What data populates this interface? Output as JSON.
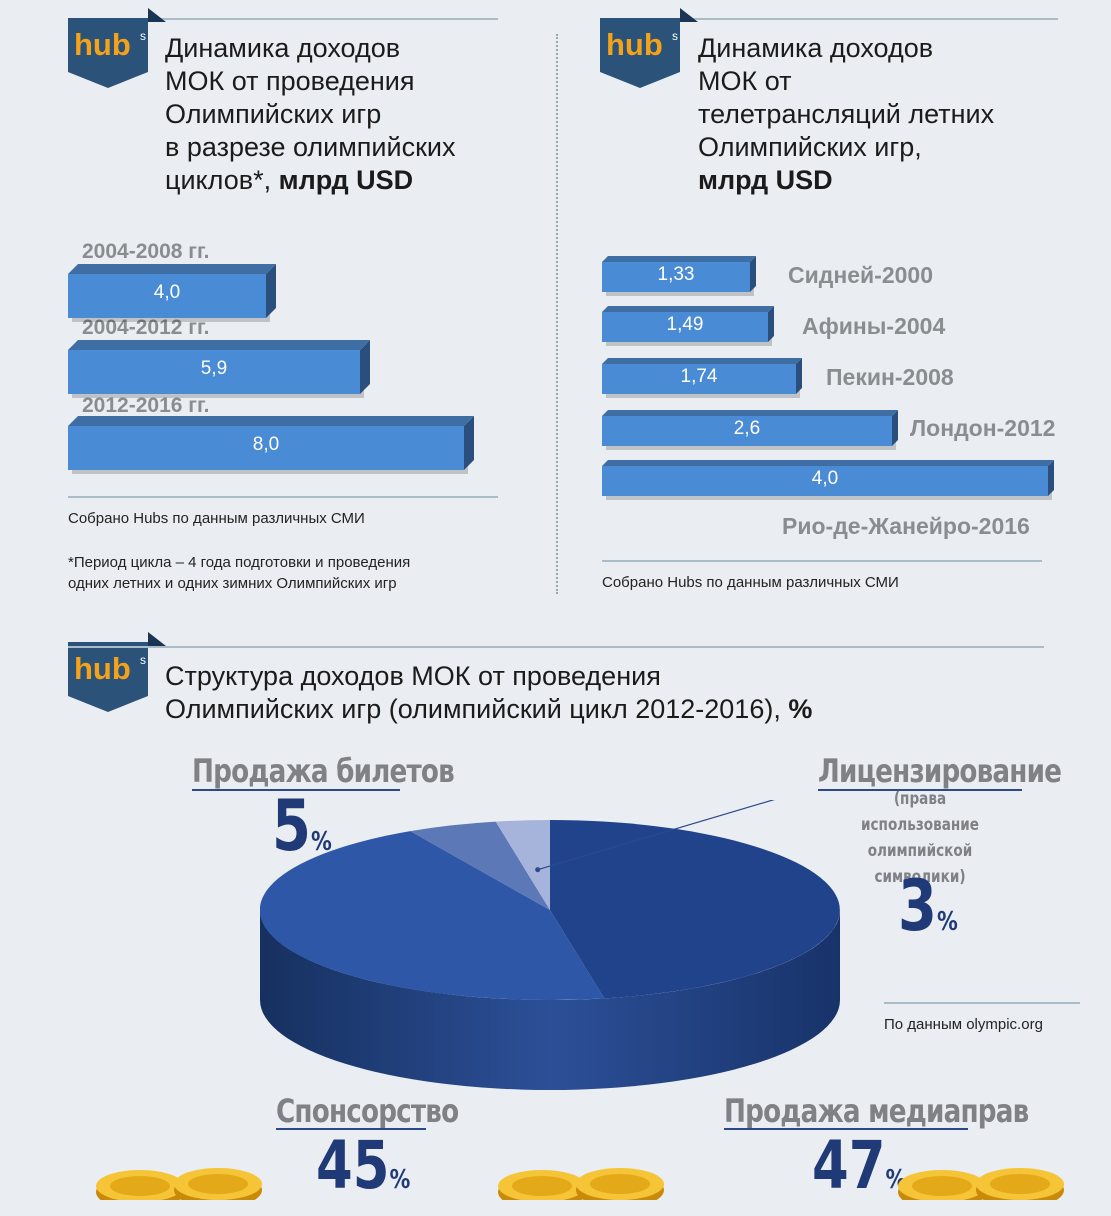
{
  "brand": {
    "logo_text": "hub",
    "logo_mark": "s"
  },
  "panel_left": {
    "title_lines": [
      "Динамика доходов",
      "МОК от проведения",
      "Олимпийских игр",
      "в разрезе олимпийских"
    ],
    "title_last_prefix": "циклов*, ",
    "title_unit": "млрд USD",
    "source": "Собрано Hubs по данным различных СМИ",
    "footnote_lines": [
      "*Период цикла – 4 года подготовки и проведения",
      "одних летних и одних зимних Олимпийских игр"
    ]
  },
  "panel_right": {
    "title_lines": [
      "Динамика доходов",
      "МОК от",
      "телетрансляций летних",
      "Олимпийских игр,"
    ],
    "title_unit": "млрд USD",
    "source": "Собрано Hubs по данным различных СМИ"
  },
  "panel_bottom": {
    "title_line1": "Структура доходов МОК от проведения",
    "title_line2_prefix": "Олимпийских игр (олимпийский цикл 2012-2016), ",
    "title_unit": "%",
    "source": "По данным olympic.org",
    "licensing_note_lines": [
      "(права использование",
      "олимпийской",
      "символики)"
    ]
  },
  "chart_data": [
    {
      "type": "bar",
      "orientation": "horizontal",
      "categories": [
        "2004-2008 гг.",
        "2004-2012 гг.",
        "2012-2016 гг."
      ],
      "values": [
        4.0,
        5.9,
        8.0
      ],
      "value_labels": [
        "4,0",
        "5,9",
        "8,0"
      ],
      "xlim": [
        0,
        8.0
      ]
    },
    {
      "type": "bar",
      "orientation": "horizontal",
      "categories": [
        "Сидней-2000",
        "Афины-2004",
        "Пекин-2008",
        "Лондон-2012",
        "Рио-де-Жанейро-2016"
      ],
      "values": [
        1.33,
        1.49,
        1.74,
        2.6,
        4.0
      ],
      "value_labels": [
        "1,33",
        "1,49",
        "1,74",
        "2,6",
        "4,0"
      ],
      "xlim": [
        0,
        4.0
      ]
    },
    {
      "type": "pie",
      "categories": [
        "Продажа медиаправ",
        "Спонсорство",
        "Продажа билетов",
        "Лицензирование"
      ],
      "values": [
        47,
        45,
        5,
        3
      ],
      "value_labels": [
        "47",
        "45",
        "5",
        "3"
      ],
      "colors": [
        "#20438c",
        "#2f57a8",
        "#5d78b7",
        "#a6b3db"
      ]
    }
  ]
}
